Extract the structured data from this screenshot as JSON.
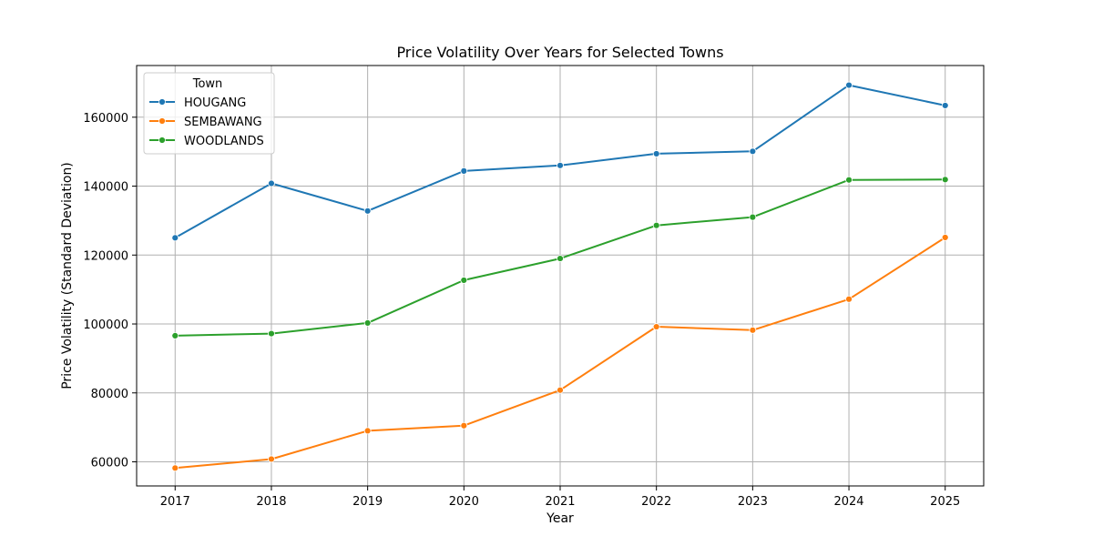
{
  "chart_data": {
    "type": "line",
    "title": "Price Volatility Over Years for Selected Towns",
    "xlabel": "Year",
    "ylabel": "Price Volatility (Standard Deviation)",
    "x": [
      2017,
      2018,
      2019,
      2020,
      2021,
      2022,
      2023,
      2024,
      2025
    ],
    "xlim": [
      2016.6,
      2025.4
    ],
    "ylim": [
      53000,
      175000
    ],
    "yticks": [
      60000,
      80000,
      100000,
      120000,
      140000,
      160000
    ],
    "grid": true,
    "legend": {
      "title": "Town",
      "placement": "top-left"
    },
    "series": [
      {
        "name": "HOUGANG",
        "color": "#1f77b4",
        "values": [
          125000,
          140800,
          132800,
          144400,
          146000,
          149400,
          150100,
          169300,
          163400
        ]
      },
      {
        "name": "SEMBAWANG",
        "color": "#ff7f0e",
        "values": [
          58200,
          60800,
          69000,
          70500,
          80800,
          99200,
          98200,
          107200,
          125100
        ]
      },
      {
        "name": "WOODLANDS",
        "color": "#2ca02c",
        "values": [
          96600,
          97200,
          100300,
          112700,
          119000,
          128600,
          131000,
          141800,
          141900
        ]
      }
    ]
  }
}
